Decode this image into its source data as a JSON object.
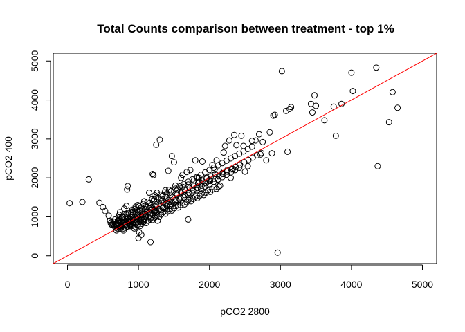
{
  "chart_data": {
    "type": "scatter",
    "title": "Total Counts comparison between treatment - top 1%",
    "xlabel": "pCO2 2800",
    "ylabel": "pCO2 400",
    "xlim": [
      -200,
      5200
    ],
    "ylim": [
      -200,
      5200
    ],
    "xticks": [
      0,
      1000,
      2000,
      3000,
      4000,
      5000
    ],
    "yticks": [
      0,
      1000,
      2000,
      3000,
      4000,
      5000
    ],
    "grid": false,
    "legend": "none",
    "colors": {
      "points": "#000000",
      "reference_line": "#ff0000",
      "frame": "#000000"
    },
    "reference_line": {
      "type": "identity",
      "slope": 1,
      "intercept": 0
    },
    "points": [
      [
        30,
        1350
      ],
      [
        210,
        1380
      ],
      [
        300,
        1960
      ],
      [
        450,
        1360
      ],
      [
        500,
        1250
      ],
      [
        530,
        1150
      ],
      [
        580,
        1030
      ],
      [
        600,
        900
      ],
      [
        610,
        830
      ],
      [
        620,
        860
      ],
      [
        640,
        820
      ],
      [
        650,
        790
      ],
      [
        660,
        870
      ],
      [
        670,
        930
      ],
      [
        680,
        810
      ],
      [
        690,
        760
      ],
      [
        700,
        850
      ],
      [
        710,
        900
      ],
      [
        720,
        980
      ],
      [
        730,
        1050
      ],
      [
        740,
        1120
      ],
      [
        750,
        780
      ],
      [
        760,
        870
      ],
      [
        770,
        950
      ],
      [
        780,
        820
      ],
      [
        790,
        700
      ],
      [
        800,
        1210
      ],
      [
        810,
        1000
      ],
      [
        820,
        900
      ],
      [
        830,
        1280
      ],
      [
        840,
        1700
      ],
      [
        850,
        1790
      ],
      [
        860,
        1100
      ],
      [
        870,
        820
      ],
      [
        880,
        760
      ],
      [
        890,
        1000
      ],
      [
        900,
        880
      ],
      [
        910,
        1180
      ],
      [
        920,
        950
      ],
      [
        930,
        1050
      ],
      [
        940,
        700
      ],
      [
        950,
        1150
      ],
      [
        960,
        1260
      ],
      [
        970,
        850
      ],
      [
        980,
        1000
      ],
      [
        990,
        1300
      ],
      [
        1000,
        450
      ],
      [
        1010,
        600
      ],
      [
        1020,
        1110
      ],
      [
        1030,
        920
      ],
      [
        1040,
        540
      ],
      [
        1050,
        1040
      ],
      [
        1060,
        1200
      ],
      [
        1070,
        870
      ],
      [
        1080,
        1400
      ],
      [
        1090,
        1000
      ],
      [
        1100,
        1080
      ],
      [
        1110,
        1250
      ],
      [
        1120,
        1170
      ],
      [
        1130,
        900
      ],
      [
        1150,
        1620
      ],
      [
        1170,
        350
      ],
      [
        1180,
        1300
      ],
      [
        1200,
        2100
      ],
      [
        1210,
        2070
      ],
      [
        1220,
        1450
      ],
      [
        1230,
        1550
      ],
      [
        1240,
        1150
      ],
      [
        1250,
        2850
      ],
      [
        1260,
        1620
      ],
      [
        1270,
        900
      ],
      [
        1300,
        2980
      ],
      [
        1320,
        1400
      ],
      [
        1350,
        1230
      ],
      [
        1380,
        1680
      ],
      [
        1400,
        1500
      ],
      [
        1420,
        2180
      ],
      [
        1450,
        1300
      ],
      [
        1470,
        2560
      ],
      [
        1500,
        2400
      ],
      [
        1520,
        1800
      ],
      [
        1540,
        1600
      ],
      [
        1560,
        1300
      ],
      [
        1600,
        2000
      ],
      [
        1620,
        2080
      ],
      [
        1650,
        1700
      ],
      [
        1680,
        2150
      ],
      [
        1700,
        930
      ],
      [
        1730,
        2200
      ],
      [
        1760,
        1750
      ],
      [
        1800,
        2450
      ],
      [
        1830,
        2000
      ],
      [
        1860,
        1900
      ],
      [
        1900,
        2420
      ],
      [
        1930,
        1880
      ],
      [
        1960,
        2000
      ],
      [
        2000,
        1950
      ],
      [
        2040,
        2330
      ],
      [
        2070,
        2200
      ],
      [
        2100,
        2450
      ],
      [
        2120,
        1950
      ],
      [
        2150,
        1800
      ],
      [
        2180,
        2120
      ],
      [
        2200,
        2650
      ],
      [
        2220,
        2820
      ],
      [
        2250,
        2200
      ],
      [
        2280,
        2960
      ],
      [
        2300,
        2000
      ],
      [
        2330,
        2230
      ],
      [
        2350,
        3100
      ],
      [
        2380,
        2840
      ],
      [
        2420,
        2260
      ],
      [
        2450,
        3080
      ],
      [
        2480,
        2820
      ],
      [
        2500,
        2160
      ],
      [
        2540,
        2300
      ],
      [
        2600,
        2950
      ],
      [
        2650,
        2960
      ],
      [
        2700,
        3120
      ],
      [
        2720,
        2600
      ],
      [
        2750,
        2920
      ],
      [
        2800,
        2450
      ],
      [
        2850,
        3170
      ],
      [
        2880,
        2630
      ],
      [
        2900,
        3600
      ],
      [
        2920,
        3620
      ],
      [
        2960,
        80
      ],
      [
        3020,
        4740
      ],
      [
        3080,
        3720
      ],
      [
        3130,
        3770
      ],
      [
        3150,
        3820
      ],
      [
        3100,
        2670
      ],
      [
        3430,
        3900
      ],
      [
        3450,
        3680
      ],
      [
        3480,
        4120
      ],
      [
        3500,
        3850
      ],
      [
        3620,
        3480
      ],
      [
        3750,
        3830
      ],
      [
        3780,
        3080
      ],
      [
        3860,
        3900
      ],
      [
        4000,
        4700
      ],
      [
        4020,
        4230
      ],
      [
        4350,
        4830
      ],
      [
        4370,
        2300
      ],
      [
        4530,
        3430
      ],
      [
        4580,
        4200
      ],
      [
        4650,
        3800
      ],
      [
        700,
        800
      ],
      [
        760,
        740
      ],
      [
        820,
        720
      ],
      [
        880,
        800
      ],
      [
        940,
        920
      ],
      [
        1000,
        980
      ],
      [
        1060,
        1060
      ],
      [
        1120,
        1130
      ],
      [
        1180,
        1180
      ],
      [
        1240,
        1260
      ],
      [
        1300,
        1330
      ],
      [
        1360,
        1380
      ],
      [
        1420,
        1430
      ],
      [
        1480,
        1500
      ],
      [
        1540,
        1560
      ],
      [
        1600,
        1620
      ],
      [
        1660,
        1680
      ],
      [
        1720,
        1740
      ],
      [
        1780,
        1800
      ],
      [
        1840,
        1860
      ],
      [
        1900,
        1920
      ],
      [
        1960,
        1980
      ],
      [
        2020,
        2040
      ],
      [
        2080,
        2100
      ],
      [
        2140,
        2160
      ],
      [
        690,
        650
      ],
      [
        740,
        690
      ],
      [
        790,
        650
      ],
      [
        840,
        750
      ],
      [
        900,
        760
      ],
      [
        960,
        820
      ],
      [
        1020,
        870
      ],
      [
        1080,
        940
      ],
      [
        1140,
        1000
      ],
      [
        1200,
        1050
      ],
      [
        1260,
        1110
      ],
      [
        1320,
        1170
      ],
      [
        1380,
        1230
      ],
      [
        1440,
        1280
      ],
      [
        1500,
        1340
      ],
      [
        770,
        1010
      ],
      [
        830,
        1070
      ],
      [
        890,
        1130
      ],
      [
        950,
        1200
      ],
      [
        1010,
        1270
      ],
      [
        1070,
        1330
      ],
      [
        1130,
        1390
      ],
      [
        1190,
        1450
      ],
      [
        1250,
        1510
      ],
      [
        1310,
        1570
      ],
      [
        1370,
        1630
      ],
      [
        1430,
        1690
      ],
      [
        650,
        880
      ],
      [
        720,
        920
      ],
      [
        780,
        990
      ],
      [
        860,
        1060
      ],
      [
        920,
        1120
      ],
      [
        980,
        1180
      ],
      [
        1040,
        1240
      ],
      [
        1100,
        1300
      ],
      [
        1160,
        1360
      ],
      [
        1220,
        1420
      ],
      [
        1280,
        1480
      ],
      [
        1340,
        1540
      ],
      [
        1400,
        1600
      ],
      [
        1460,
        1660
      ],
      [
        1520,
        1720
      ],
      [
        1580,
        1780
      ],
      [
        1640,
        1840
      ],
      [
        1700,
        1900
      ],
      [
        1760,
        1960
      ],
      [
        1820,
        2020
      ],
      [
        1880,
        2080
      ],
      [
        1940,
        2140
      ],
      [
        2000,
        2200
      ],
      [
        2060,
        2260
      ],
      [
        2120,
        2320
      ],
      [
        2180,
        2380
      ],
      [
        2240,
        2440
      ],
      [
        2300,
        2500
      ],
      [
        2360,
        2560
      ],
      [
        2420,
        2620
      ],
      [
        2480,
        2680
      ],
      [
        2540,
        2740
      ],
      [
        2600,
        2800
      ],
      [
        880,
        900
      ],
      [
        930,
        860
      ],
      [
        990,
        940
      ],
      [
        1050,
        980
      ],
      [
        1110,
        1020
      ],
      [
        1170,
        1080
      ],
      [
        1230,
        1140
      ],
      [
        1290,
        1200
      ],
      [
        1350,
        1260
      ],
      [
        1410,
        1320
      ],
      [
        1470,
        1380
      ],
      [
        1530,
        1440
      ],
      [
        1590,
        1500
      ],
      [
        1650,
        1560
      ],
      [
        1710,
        1620
      ],
      [
        1770,
        1680
      ],
      [
        1830,
        1740
      ],
      [
        1890,
        1800
      ],
      [
        1950,
        1860
      ],
      [
        2010,
        1920
      ],
      [
        2070,
        1980
      ],
      [
        2130,
        2040
      ],
      [
        2190,
        2100
      ],
      [
        2250,
        2160
      ],
      [
        2310,
        2220
      ],
      [
        2370,
        2280
      ],
      [
        2430,
        2340
      ],
      [
        2490,
        2400
      ],
      [
        2550,
        2460
      ],
      [
        2610,
        2520
      ],
      [
        2670,
        2580
      ],
      [
        2730,
        2640
      ],
      [
        760,
        960
      ],
      [
        810,
        860
      ],
      [
        870,
        940
      ],
      [
        700,
        760
      ],
      [
        730,
        870
      ],
      [
        790,
        920
      ],
      [
        850,
        990
      ],
      [
        910,
        1040
      ],
      [
        970,
        1090
      ],
      [
        1030,
        1150
      ],
      [
        1090,
        1200
      ],
      [
        1150,
        1220
      ],
      [
        1210,
        1280
      ],
      [
        620,
        800
      ],
      [
        680,
        720
      ],
      [
        740,
        760
      ],
      [
        800,
        780
      ],
      [
        860,
        860
      ],
      [
        920,
        830
      ],
      [
        980,
        900
      ],
      [
        1040,
        950
      ],
      [
        1100,
        1000
      ],
      [
        1160,
        1080
      ],
      [
        1220,
        1100
      ],
      [
        1280,
        1170
      ],
      [
        1340,
        1220
      ],
      [
        1400,
        1280
      ],
      [
        1460,
        1330
      ],
      [
        1520,
        1390
      ],
      [
        1580,
        1450
      ],
      [
        1640,
        1500
      ],
      [
        1700,
        1560
      ],
      [
        1760,
        1620
      ],
      [
        1820,
        1680
      ],
      [
        1880,
        1720
      ],
      [
        1940,
        1780
      ],
      [
        2000,
        1840
      ],
      [
        2060,
        1900
      ],
      [
        2120,
        1960
      ],
      [
        2180,
        2020
      ],
      [
        2240,
        2080
      ],
      [
        2300,
        2140
      ],
      [
        2360,
        2200
      ],
      [
        1180,
        1220
      ],
      [
        1220,
        1180
      ],
      [
        1050,
        1120
      ],
      [
        1000,
        1060
      ],
      [
        950,
        1000
      ],
      [
        900,
        950
      ],
      [
        850,
        900
      ],
      [
        800,
        850
      ],
      [
        750,
        800
      ],
      [
        700,
        700
      ],
      [
        660,
        760
      ],
      [
        690,
        820
      ],
      [
        720,
        780
      ],
      [
        750,
        730
      ],
      [
        780,
        860
      ],
      [
        810,
        800
      ],
      [
        840,
        840
      ],
      [
        870,
        880
      ],
      [
        900,
        820
      ],
      [
        930,
        780
      ],
      [
        960,
        740
      ],
      [
        990,
        800
      ],
      [
        1020,
        760
      ],
      [
        1050,
        820
      ],
      [
        1080,
        880
      ],
      [
        1110,
        840
      ],
      [
        1140,
        900
      ],
      [
        1170,
        960
      ],
      [
        1200,
        920
      ],
      [
        1230,
        980
      ],
      [
        1260,
        1040
      ],
      [
        1290,
        1000
      ],
      [
        1320,
        1060
      ],
      [
        1350,
        1120
      ],
      [
        1380,
        1080
      ],
      [
        1410,
        1140
      ],
      [
        1440,
        1200
      ],
      [
        1470,
        1160
      ],
      [
        1500,
        1220
      ],
      [
        1530,
        1280
      ],
      [
        1560,
        1240
      ],
      [
        1590,
        1300
      ],
      [
        1620,
        1360
      ],
      [
        1650,
        1320
      ],
      [
        1680,
        1380
      ],
      [
        1710,
        1440
      ],
      [
        1740,
        1400
      ],
      [
        1770,
        1460
      ],
      [
        1800,
        1520
      ],
      [
        1830,
        1480
      ],
      [
        1860,
        1540
      ],
      [
        1890,
        1600
      ],
      [
        1920,
        1560
      ],
      [
        1950,
        1620
      ],
      [
        1980,
        1680
      ],
      [
        2010,
        1640
      ],
      [
        2040,
        1700
      ],
      [
        2070,
        1760
      ],
      [
        2100,
        1720
      ],
      [
        2130,
        1780
      ],
      [
        1380,
        1460
      ],
      [
        1450,
        1560
      ],
      [
        1550,
        1700
      ],
      [
        1620,
        1770
      ],
      [
        1700,
        1830
      ],
      [
        1780,
        1930
      ],
      [
        1850,
        2000
      ],
      [
        1250,
        1320
      ],
      [
        1330,
        1420
      ],
      [
        1190,
        1250
      ]
    ]
  }
}
